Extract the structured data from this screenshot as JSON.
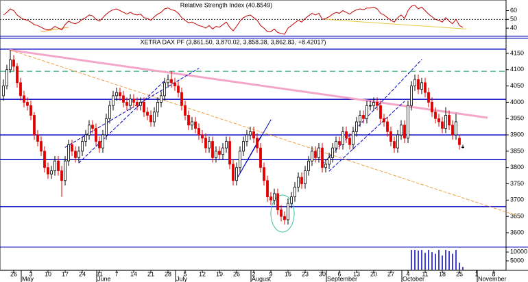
{
  "chart_data": [
    {
      "type": "line",
      "title": "Relative Strength Index (40.8549)",
      "color": "#c00000",
      "values": [
        55,
        58,
        62,
        60,
        55,
        52,
        50,
        49,
        47,
        44,
        43,
        41,
        39,
        38,
        39,
        42,
        40,
        38,
        44,
        48,
        46,
        45,
        47,
        50,
        52,
        55,
        54,
        50,
        48,
        52,
        56,
        59,
        61,
        62,
        60,
        58,
        56,
        58,
        56,
        55,
        56,
        52,
        51,
        49,
        53,
        56,
        58,
        62,
        63,
        61,
        60,
        57,
        52,
        49,
        46,
        47,
        45,
        43,
        42,
        40,
        43,
        39,
        42,
        41,
        44,
        47,
        41,
        37,
        42,
        48,
        52,
        54,
        55,
        52,
        49,
        43,
        40,
        36,
        36,
        39,
        35,
        34,
        33,
        40,
        43,
        46,
        49,
        47,
        51,
        54,
        57,
        55,
        57,
        50,
        51,
        53,
        56,
        58,
        57,
        60,
        58,
        56,
        59,
        61,
        62,
        61,
        63,
        63,
        64,
        62,
        57,
        55,
        52,
        49,
        47,
        52,
        55,
        51,
        60,
        65,
        66,
        62,
        64,
        60,
        56,
        53,
        50,
        49,
        47,
        52,
        48,
        45,
        50,
        43,
        40.8549
      ],
      "ylim": [
        31.5,
        69
      ],
      "yticks": [
        40,
        50,
        60
      ],
      "ref_lines": [
        {
          "value": 50,
          "color": "#333333",
          "dash": true
        }
      ],
      "trendlines": [
        {
          "x": [
            11,
            19
          ],
          "y": [
            36,
            41
          ],
          "color": "#f0a030"
        },
        {
          "x": [
            94,
            135
          ],
          "y": [
            50,
            39
          ],
          "color": "#e8c840"
        }
      ]
    },
    {
      "type": "candlestick",
      "title": "XETRA DAX PF (3,861.50, 3,870.02, 3,858.38, 3,862.83, +8.42017)",
      "up_color": "#ffffff",
      "down_color": "#e00000",
      "ohlc": [
        [
          4020,
          4070,
          4005,
          4050
        ],
        [
          4050,
          4115,
          4040,
          4100
        ],
        [
          4100,
          4160,
          4090,
          4130
        ],
        [
          4130,
          4145,
          4095,
          4110
        ],
        [
          4110,
          4120,
          4045,
          4060
        ],
        [
          4060,
          4075,
          4005,
          4020
        ],
        [
          4020,
          4035,
          3985,
          4000
        ],
        [
          4000,
          4015,
          3975,
          3990
        ],
        [
          3990,
          4005,
          3945,
          3960
        ],
        [
          3960,
          3970,
          3885,
          3900
        ],
        [
          3900,
          3915,
          3865,
          3880
        ],
        [
          3880,
          3895,
          3835,
          3850
        ],
        [
          3850,
          3865,
          3785,
          3800
        ],
        [
          3800,
          3815,
          3765,
          3780
        ],
        [
          3780,
          3805,
          3765,
          3790
        ],
        [
          3790,
          3835,
          3775,
          3820
        ],
        [
          3820,
          3835,
          3775,
          3790
        ],
        [
          3790,
          3805,
          3710,
          3760
        ],
        [
          3760,
          3835,
          3745,
          3820
        ],
        [
          3820,
          3885,
          3805,
          3870
        ],
        [
          3870,
          3885,
          3835,
          3850
        ],
        [
          3850,
          3865,
          3815,
          3830
        ],
        [
          3830,
          3865,
          3815,
          3850
        ],
        [
          3850,
          3895,
          3835,
          3880
        ],
        [
          3880,
          3915,
          3865,
          3900
        ],
        [
          3900,
          3945,
          3885,
          3930
        ],
        [
          3930,
          3945,
          3905,
          3920
        ],
        [
          3920,
          3935,
          3865,
          3880
        ],
        [
          3880,
          3895,
          3845,
          3860
        ],
        [
          3860,
          3915,
          3845,
          3900
        ],
        [
          3900,
          3965,
          3885,
          3950
        ],
        [
          3950,
          4005,
          3935,
          3990
        ],
        [
          3990,
          4035,
          3975,
          4020
        ],
        [
          4020,
          4045,
          4005,
          4030
        ],
        [
          4030,
          4045,
          4005,
          4020
        ],
        [
          4020,
          4035,
          3985,
          4000
        ],
        [
          4000,
          4015,
          3975,
          3990
        ],
        [
          3990,
          4025,
          3975,
          4010
        ],
        [
          4010,
          4025,
          3985,
          4000
        ],
        [
          4000,
          4015,
          3975,
          3990
        ],
        [
          3990,
          4015,
          3975,
          4000
        ],
        [
          4000,
          4015,
          3955,
          3970
        ],
        [
          3970,
          3985,
          3945,
          3960
        ],
        [
          3960,
          3975,
          3925,
          3940
        ],
        [
          3940,
          3985,
          3925,
          3970
        ],
        [
          3970,
          4015,
          3955,
          4000
        ],
        [
          4000,
          4035,
          3985,
          4020
        ],
        [
          4020,
          4075,
          4005,
          4060
        ],
        [
          4060,
          4085,
          4045,
          4070
        ],
        [
          4070,
          4095,
          4045,
          4060
        ],
        [
          4060,
          4075,
          4035,
          4050
        ],
        [
          4050,
          4065,
          4015,
          4030
        ],
        [
          4030,
          4045,
          3975,
          3990
        ],
        [
          3990,
          4005,
          3945,
          3960
        ],
        [
          3960,
          3975,
          3915,
          3930
        ],
        [
          3930,
          3955,
          3915,
          3940
        ],
        [
          3940,
          3955,
          3905,
          3920
        ],
        [
          3920,
          3935,
          3885,
          3900
        ],
        [
          3900,
          3915,
          3875,
          3890
        ],
        [
          3890,
          3905,
          3845,
          3860
        ],
        [
          3860,
          3895,
          3845,
          3880
        ],
        [
          3880,
          3895,
          3815,
          3830
        ],
        [
          3830,
          3865,
          3815,
          3850
        ],
        [
          3850,
          3865,
          3825,
          3840
        ],
        [
          3840,
          3875,
          3825,
          3860
        ],
        [
          3860,
          3895,
          3845,
          3880
        ],
        [
          3880,
          3895,
          3795,
          3810
        ],
        [
          3810,
          3825,
          3745,
          3760
        ],
        [
          3760,
          3815,
          3745,
          3800
        ],
        [
          3800,
          3865,
          3785,
          3850
        ],
        [
          3850,
          3895,
          3835,
          3880
        ],
        [
          3880,
          3915,
          3865,
          3900
        ],
        [
          3900,
          3925,
          3885,
          3910
        ],
        [
          3910,
          3925,
          3875,
          3890
        ],
        [
          3890,
          3905,
          3845,
          3860
        ],
        [
          3860,
          3875,
          3785,
          3800
        ],
        [
          3800,
          3815,
          3745,
          3760
        ],
        [
          3760,
          3775,
          3695,
          3710
        ],
        [
          3710,
          3725,
          3685,
          3700
        ],
        [
          3700,
          3735,
          3685,
          3720
        ],
        [
          3720,
          3735,
          3655,
          3670
        ],
        [
          3670,
          3685,
          3635,
          3650
        ],
        [
          3650,
          3665,
          3625,
          3640
        ],
        [
          3640,
          3705,
          3625,
          3690
        ],
        [
          3690,
          3725,
          3675,
          3710
        ],
        [
          3710,
          3755,
          3695,
          3740
        ],
        [
          3740,
          3785,
          3725,
          3770
        ],
        [
          3770,
          3785,
          3735,
          3750
        ],
        [
          3750,
          3805,
          3735,
          3790
        ],
        [
          3790,
          3835,
          3775,
          3820
        ],
        [
          3820,
          3865,
          3805,
          3850
        ],
        [
          3850,
          3865,
          3815,
          3830
        ],
        [
          3830,
          3875,
          3815,
          3860
        ],
        [
          3860,
          3875,
          3785,
          3800
        ],
        [
          3800,
          3825,
          3785,
          3810
        ],
        [
          3810,
          3845,
          3795,
          3830
        ],
        [
          3830,
          3875,
          3815,
          3860
        ],
        [
          3860,
          3895,
          3845,
          3880
        ],
        [
          3880,
          3895,
          3855,
          3870
        ],
        [
          3870,
          3925,
          3855,
          3910
        ],
        [
          3910,
          3925,
          3875,
          3890
        ],
        [
          3890,
          3905,
          3855,
          3870
        ],
        [
          3870,
          3925,
          3855,
          3910
        ],
        [
          3910,
          3955,
          3895,
          3940
        ],
        [
          3940,
          3975,
          3925,
          3960
        ],
        [
          3960,
          3975,
          3935,
          3950
        ],
        [
          3950,
          4005,
          3935,
          3990
        ],
        [
          3990,
          4005,
          3975,
          3990
        ],
        [
          3990,
          4015,
          3975,
          4000
        ],
        [
          4000,
          4015,
          3975,
          3990
        ],
        [
          3990,
          4005,
          3935,
          3950
        ],
        [
          3950,
          3965,
          3925,
          3940
        ],
        [
          3940,
          3955,
          3895,
          3910
        ],
        [
          3910,
          3925,
          3865,
          3880
        ],
        [
          3880,
          3895,
          3845,
          3860
        ],
        [
          3860,
          3915,
          3845,
          3900
        ],
        [
          3900,
          3945,
          3885,
          3930
        ],
        [
          3930,
          3945,
          3875,
          3890
        ],
        [
          3890,
          4005,
          3875,
          3990
        ],
        [
          3990,
          4065,
          3975,
          4050
        ],
        [
          4050,
          4085,
          4035,
          4070
        ],
        [
          4070,
          4085,
          4025,
          4040
        ],
        [
          4040,
          4075,
          4025,
          4060
        ],
        [
          4060,
          4075,
          4015,
          4030
        ],
        [
          4030,
          4045,
          3985,
          4000
        ],
        [
          4000,
          4015,
          3955,
          3970
        ],
        [
          3970,
          3985,
          3935,
          3950
        ],
        [
          3950,
          3965,
          3925,
          3940
        ],
        [
          3940,
          3955,
          3905,
          3920
        ],
        [
          3920,
          3985,
          3905,
          3960
        ],
        [
          3960,
          3975,
          3915,
          3930
        ],
        [
          3930,
          3945,
          3885,
          3900
        ],
        [
          3900,
          3965,
          3885,
          3940
        ],
        [
          3890,
          3900,
          3855,
          3870
        ],
        [
          3861.5,
          3870.02,
          3858.38,
          3862.83
        ]
      ],
      "xlim": [
        -1,
        146.6
      ],
      "xticks": [
        {
          "value": 3,
          "label": "26"
        },
        {
          "value": 8,
          "label": "3"
        },
        {
          "value": 13,
          "label": "10"
        },
        {
          "value": 18,
          "label": "17"
        },
        {
          "value": 23,
          "label": "24"
        },
        {
          "value": 28,
          "label": "31"
        },
        {
          "value": 33,
          "label": "7"
        },
        {
          "value": 38,
          "label": "14"
        },
        {
          "value": 43,
          "label": "21"
        },
        {
          "value": 48,
          "label": "28"
        },
        {
          "value": 53,
          "label": "5"
        },
        {
          "value": 58,
          "label": "12"
        },
        {
          "value": 63,
          "label": "19"
        },
        {
          "value": 68,
          "label": "26"
        },
        {
          "value": 73,
          "label": "2"
        },
        {
          "value": 78,
          "label": "9"
        },
        {
          "value": 83,
          "label": "16"
        },
        {
          "value": 88,
          "label": "23"
        },
        {
          "value": 93,
          "label": "30"
        },
        {
          "value": 98,
          "label": "6"
        },
        {
          "value": 103,
          "label": "13"
        },
        {
          "value": 108,
          "label": "20"
        },
        {
          "value": 113,
          "label": "27"
        },
        {
          "value": 118,
          "label": "4"
        },
        {
          "value": 123,
          "label": "11"
        },
        {
          "value": 128,
          "label": "18"
        },
        {
          "value": 133,
          "label": "25"
        },
        {
          "value": 138,
          "label": "1"
        },
        {
          "value": 143,
          "label": "8"
        }
      ],
      "month_ticks": [
        {
          "value": 6,
          "label": "May"
        },
        {
          "value": 28,
          "label": "June"
        },
        {
          "value": 51,
          "label": "July"
        },
        {
          "value": 73,
          "label": "August"
        },
        {
          "value": 95,
          "label": "September"
        },
        {
          "value": 117,
          "label": "October"
        },
        {
          "value": 139,
          "label": "November"
        }
      ],
      "ylim": [
        3558,
        4194
      ],
      "yticks": [
        3600,
        3650,
        3700,
        3750,
        3800,
        3850,
        3900,
        3950,
        4000,
        4050,
        4100,
        4150
      ],
      "hlines": [
        {
          "value": 4163,
          "color": "#0000c0"
        },
        {
          "value": 4095,
          "color": "#00a050",
          "dash": true
        },
        {
          "value": 4009,
          "color": "#0000c0"
        },
        {
          "value": 3900,
          "color": "#0000c0"
        },
        {
          "value": 3824,
          "color": "#0000c0"
        },
        {
          "value": 3680,
          "color": "#0000c0"
        }
      ],
      "trendlines": [
        {
          "x": [
            2,
            141
          ],
          "y": [
            4160,
            3953
          ],
          "color": "#f4a6c8",
          "width": 3
        },
        {
          "x": [
            2,
            150
          ],
          "y": [
            4160,
            3652
          ],
          "color": "#f0a040",
          "dash": true
        },
        {
          "x": [
            18,
            57
          ],
          "y": [
            3862,
            4104
          ],
          "color": "#0000c0",
          "dash": true
        },
        {
          "x": [
            22,
            47
          ],
          "y": [
            3814,
            4066
          ],
          "color": "#0000c0",
          "dash": true
        },
        {
          "x": [
            93,
            122
          ],
          "y": [
            3810,
            4131
          ],
          "color": "#0000c0",
          "dash": true
        },
        {
          "x": [
            95,
            117
          ],
          "y": [
            3789,
            4003
          ],
          "color": "#0000c0",
          "dash": true
        },
        {
          "x": [
            68,
            78
          ],
          "y": [
            3764,
            3946
          ],
          "color": "#0000c0"
        },
        {
          "x": [
            68,
            75
          ],
          "y": [
            3764,
            3894
          ],
          "color": "#0000c0"
        }
      ]
    },
    {
      "type": "bar",
      "color": "#0000c0",
      "x": [
        119,
        120,
        121,
        122,
        123,
        124,
        125,
        126,
        127,
        128,
        129,
        130,
        131,
        132,
        133,
        134
      ],
      "values": [
        11200,
        11200,
        10800,
        11200,
        9500,
        11200,
        10000,
        9000,
        11200,
        8000,
        11200,
        10500,
        9000,
        11200,
        4000,
        1500
      ],
      "ylim": [
        0,
        12000
      ],
      "yticks": [
        5000,
        10000
      ]
    }
  ]
}
